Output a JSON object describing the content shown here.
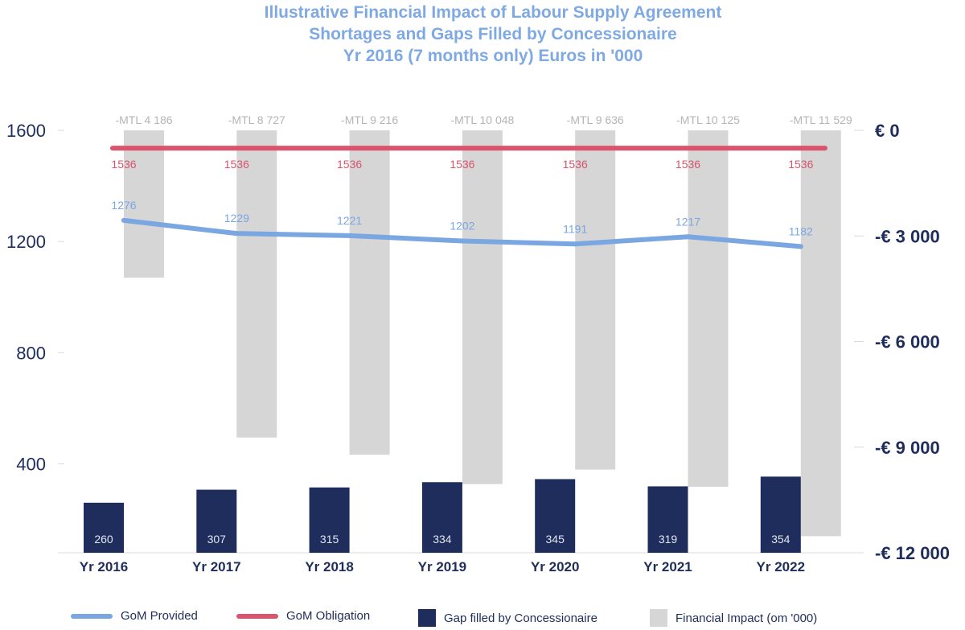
{
  "title": {
    "line1": "Illustrative Financial Impact of Labour Supply Agreement",
    "line2": "Shortages and Gaps Filled by Concessionaire",
    "line3": "Yr 2016 (7 months only) Euros in '000"
  },
  "colors": {
    "gom_provided": "#7aa6e2",
    "gom_obligation": "#d9546c",
    "gap": "#1f2d5c",
    "impact": "#d6d6d6",
    "axis_text": "#1f2d5c",
    "impact_label": "#b5b5b5",
    "gap_label": "#e2e5ee"
  },
  "legend": {
    "gom_provided": "GoM Provided",
    "gom_obligation": "GoM Obligation",
    "gap": "Gap filled by Concessionaire",
    "impact": "Financial Impact (om '000)"
  },
  "chart_data": {
    "type": "bar",
    "title": "Illustrative Financial Impact of Labour Supply Agreement Shortages and Gaps Filled by Concessionaire Yr 2016 (7 months only) Euros in '000",
    "categories": [
      "Yr 2016",
      "Yr 2017",
      "Yr 2018",
      "Yr 2019",
      "Yr 2020",
      "Yr 2021",
      "Yr 2022"
    ],
    "left_axis": {
      "ticks": [
        400,
        800,
        1200,
        1600
      ],
      "tick_labels": [
        "400",
        "800",
        "1200",
        "1600"
      ],
      "range": [
        80,
        1600
      ]
    },
    "right_axis": {
      "ticks": [
        0,
        -3000,
        -6000,
        -9000,
        -12000
      ],
      "tick_labels": [
        "€ 0",
        "-€ 3 000",
        "-€ 6 000",
        "-€ 9 000",
        "-€ 12 000"
      ],
      "range": [
        -12000,
        0
      ]
    },
    "series": [
      {
        "name": "Gap filled by Concessionaire",
        "type": "bar",
        "axis": "left",
        "values": [
          260,
          307,
          315,
          334,
          345,
          319,
          354
        ],
        "labels": [
          "260",
          "307",
          "315",
          "334",
          "345",
          "319",
          "354"
        ]
      },
      {
        "name": "Financial Impact (om '000)",
        "type": "bar",
        "axis": "right",
        "values": [
          -4186,
          -8727,
          -9216,
          -10048,
          -9636,
          -10125,
          -11529
        ],
        "labels": [
          "-MTL 4 186",
          "-MTL 8 727",
          "-MTL 9 216",
          "-MTL 10 048",
          "-MTL 9 636",
          "-MTL 10 125",
          "-MTL 11 529"
        ]
      },
      {
        "name": "GoM Provided",
        "type": "line",
        "axis": "left",
        "values": [
          1276,
          1229,
          1221,
          1202,
          1191,
          1217,
          1182
        ],
        "labels": [
          "1276",
          "1229",
          "1221",
          "1202",
          "1191",
          "1217",
          "1182"
        ]
      },
      {
        "name": "GoM Obligation",
        "type": "line",
        "axis": "left",
        "values": [
          1536,
          1536,
          1536,
          1536,
          1536,
          1536,
          1536
        ],
        "labels": [
          "1536",
          "1536",
          "1536",
          "1536",
          "1536",
          "1536",
          "1536"
        ]
      }
    ],
    "grid": false,
    "legend": "bottom"
  }
}
